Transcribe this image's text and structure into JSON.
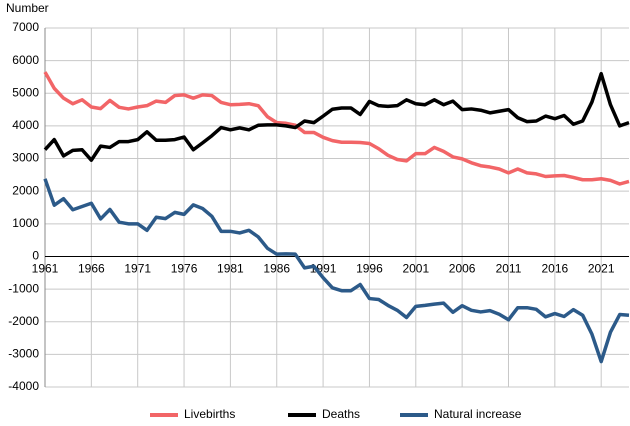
{
  "chart_data": {
    "type": "line",
    "y_label": "Number",
    "x": [
      1961,
      1962,
      1963,
      1964,
      1965,
      1966,
      1967,
      1968,
      1969,
      1970,
      1971,
      1972,
      1973,
      1974,
      1975,
      1976,
      1977,
      1978,
      1979,
      1980,
      1981,
      1982,
      1983,
      1984,
      1985,
      1986,
      1987,
      1988,
      1989,
      1990,
      1991,
      1992,
      1993,
      1994,
      1995,
      1996,
      1997,
      1998,
      1999,
      2000,
      2001,
      2002,
      2003,
      2004,
      2005,
      2006,
      2007,
      2008,
      2009,
      2010,
      2011,
      2012,
      2013,
      2014,
      2015,
      2016,
      2017,
      2018,
      2019,
      2020,
      2021,
      2022,
      2023,
      2024
    ],
    "xlim": [
      1961,
      2024
    ],
    "xticks": [
      1961,
      1966,
      1971,
      1976,
      1981,
      1986,
      1991,
      1996,
      2001,
      2006,
      2011,
      2016,
      2021
    ],
    "ylim": [
      -4000,
      7000
    ],
    "yticks": [
      -4000,
      -3000,
      -2000,
      -1000,
      0,
      1000,
      2000,
      3000,
      4000,
      5000,
      6000,
      7000
    ],
    "grid": true,
    "legend": "bottom",
    "series": [
      {
        "name": "Livebirths",
        "color": "#f26567",
        "values": [
          5650,
          5150,
          4850,
          4680,
          4800,
          4580,
          4530,
          4780,
          4570,
          4520,
          4580,
          4620,
          4760,
          4720,
          4930,
          4950,
          4850,
          4950,
          4930,
          4720,
          4650,
          4660,
          4680,
          4620,
          4280,
          4100,
          4080,
          4020,
          3800,
          3800,
          3650,
          3550,
          3500,
          3500,
          3490,
          3460,
          3300,
          3100,
          2970,
          2930,
          3150,
          3150,
          3340,
          3220,
          3050,
          2990,
          2870,
          2780,
          2740,
          2680,
          2560,
          2680,
          2560,
          2530,
          2450,
          2470,
          2480,
          2420,
          2350,
          2350,
          2380,
          2330,
          2220,
          2300
        ]
      },
      {
        "name": "Deaths",
        "color": "#000000",
        "values": [
          3270,
          3580,
          3080,
          3250,
          3270,
          2950,
          3380,
          3340,
          3520,
          3520,
          3580,
          3820,
          3560,
          3560,
          3580,
          3660,
          3270,
          3480,
          3700,
          3950,
          3880,
          3940,
          3880,
          4020,
          4030,
          4030,
          4000,
          3950,
          4150,
          4100,
          4300,
          4510,
          4550,
          4550,
          4350,
          4750,
          4620,
          4600,
          4620,
          4800,
          4680,
          4650,
          4800,
          4650,
          4760,
          4500,
          4520,
          4480,
          4400,
          4450,
          4500,
          4250,
          4130,
          4150,
          4300,
          4220,
          4320,
          4050,
          4150,
          4730,
          5600,
          4650,
          4000,
          4100
        ]
      },
      {
        "name": "Natural increase",
        "color": "#2c5a89",
        "values": [
          2380,
          1570,
          1770,
          1430,
          1530,
          1630,
          1150,
          1440,
          1050,
          1000,
          1000,
          800,
          1200,
          1160,
          1350,
          1290,
          1580,
          1470,
          1230,
          770,
          770,
          720,
          800,
          600,
          250,
          70,
          80,
          70,
          -350,
          -300,
          -650,
          -960,
          -1050,
          -1050,
          -860,
          -1290,
          -1320,
          -1500,
          -1650,
          -1870,
          -1530,
          -1500,
          -1460,
          -1430,
          -1710,
          -1510,
          -1650,
          -1700,
          -1660,
          -1770,
          -1940,
          -1570,
          -1570,
          -1620,
          -1850,
          -1750,
          -1840,
          -1630,
          -1800,
          -2380,
          -3220,
          -2320,
          -1780,
          -1800
        ]
      }
    ]
  }
}
